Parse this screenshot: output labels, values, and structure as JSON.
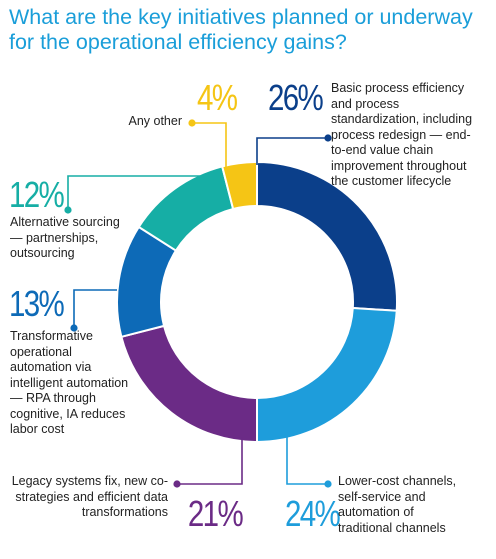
{
  "title": "What are the key initiatives planned or underway for the operational efficiency gains?",
  "chart_data": {
    "type": "pie",
    "donut": true,
    "title": "What are the key initiatives planned or underway for the operational efficiency gains?",
    "slices": [
      {
        "label": "Basic process efficiency and process standardization, including process redesign — end-to-end value chain improvement throughout the customer lifecycle",
        "value": 26,
        "display": "26%",
        "color": "#0b3f8a"
      },
      {
        "label": "Lower-cost channels, self-service and automation of traditional channels",
        "value": 24,
        "display": "24%",
        "color": "#1e9ddb"
      },
      {
        "label": "Legacy systems fix, new co-strategies and efficient data transformations",
        "value": 21,
        "display": "21%",
        "color": "#6b2b86"
      },
      {
        "label": "Transformative operational automation via intelligent automation — RPA through cognitive, IA reduces labor cost",
        "value": 13,
        "display": "13%",
        "color": "#0d6ab7"
      },
      {
        "label": "Alternative sourcing — partnerships, outsourcing",
        "value": 12,
        "display": "12%",
        "color": "#16aea5"
      },
      {
        "label": "Any other",
        "value": 4,
        "display": "4%",
        "color": "#f5c515"
      }
    ]
  }
}
